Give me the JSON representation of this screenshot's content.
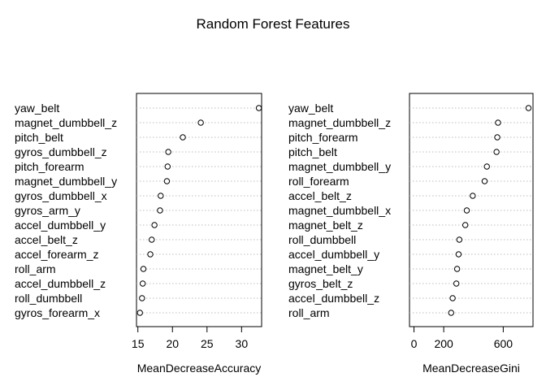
{
  "chart_data": {
    "title": "Random Forest Features",
    "panels": [
      {
        "type": "dotchart",
        "xlabel": "MeanDecreaseAccuracy",
        "xlim": [
          14.8,
          32.9
        ],
        "xticks": [
          15,
          20,
          25,
          30
        ],
        "categories": [
          "yaw_belt",
          "magnet_dumbbell_z",
          "pitch_belt",
          "gyros_dumbbell_z",
          "pitch_forearm",
          "magnet_dumbbell_y",
          "gyros_dumbbell_x",
          "gyros_arm_y",
          "accel_dumbbell_y",
          "accel_belt_z",
          "accel_forearm_z",
          "roll_arm",
          "accel_dumbbell_z",
          "roll_dumbbell",
          "gyros_forearm_x"
        ],
        "values": [
          32.5,
          24.1,
          21.5,
          19.4,
          19.3,
          19.2,
          18.3,
          18.2,
          17.4,
          17.0,
          16.8,
          15.8,
          15.7,
          15.6,
          15.3
        ]
      },
      {
        "type": "dotchart",
        "xlabel": "MeanDecreaseGini",
        "xlim": [
          -30,
          800
        ],
        "xticks": [
          0,
          200,
          600
        ],
        "categories": [
          "yaw_belt",
          "magnet_dumbbell_z",
          "pitch_forearm",
          "pitch_belt",
          "magnet_dumbbell_y",
          "roll_forearm",
          "accel_belt_z",
          "magnet_dumbbell_x",
          "magnet_belt_z",
          "roll_dumbbell",
          "accel_dumbbell_y",
          "magnet_belt_y",
          "gyros_belt_z",
          "accel_dumbbell_z",
          "roll_arm"
        ],
        "values": [
          770,
          565,
          560,
          555,
          490,
          475,
          395,
          355,
          345,
          305,
          300,
          290,
          285,
          260,
          250
        ]
      }
    ]
  }
}
